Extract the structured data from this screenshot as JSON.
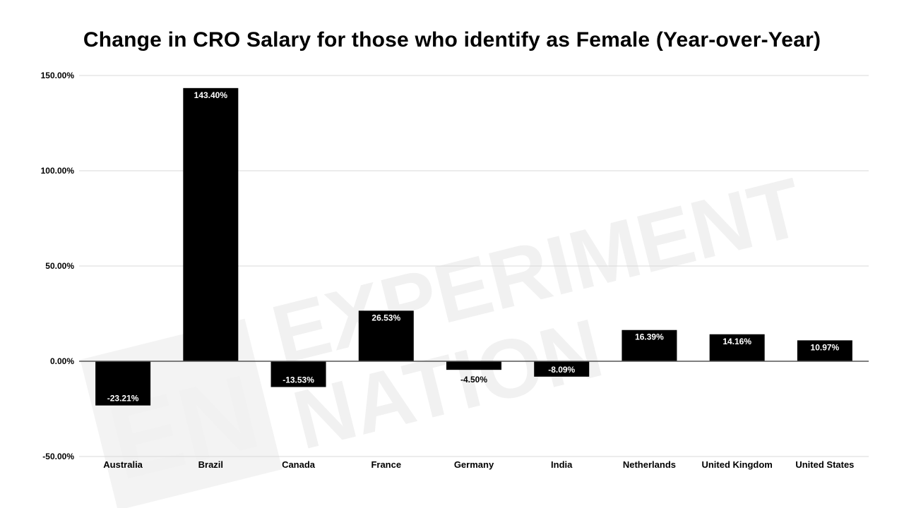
{
  "chart_data": {
    "type": "bar",
    "title": "Change in CRO Salary for those who identify as Female (Year-over-Year)",
    "xlabel": "",
    "ylabel": "",
    "categories": [
      "Australia",
      "Brazil",
      "Canada",
      "France",
      "Germany",
      "India",
      "Netherlands",
      "United Kingdom",
      "United States"
    ],
    "values": [
      -23.21,
      143.4,
      -13.53,
      26.53,
      -4.5,
      -8.09,
      16.39,
      14.16,
      10.97
    ],
    "data_labels": [
      "-23.21%",
      "143.40%",
      "-13.53%",
      "26.53%",
      "-4.50%",
      "-8.09%",
      "16.39%",
      "14.16%",
      "10.97%"
    ],
    "ylim": [
      -50,
      150
    ],
    "yticks": [
      -50,
      0,
      50,
      100,
      150
    ],
    "ytick_labels": [
      "-50.00%",
      "0.00%",
      "50.00%",
      "100.00%",
      "150.00%"
    ],
    "grid": true,
    "legend": "none",
    "bar_color": "#000000",
    "gridline_color": "#d9d9d9",
    "zero_line_color": "#555555"
  },
  "watermark": {
    "logo_letters": "EN",
    "line1": "EXPERIMENT",
    "line2": "NATION",
    "color": "#f1f1f1"
  }
}
